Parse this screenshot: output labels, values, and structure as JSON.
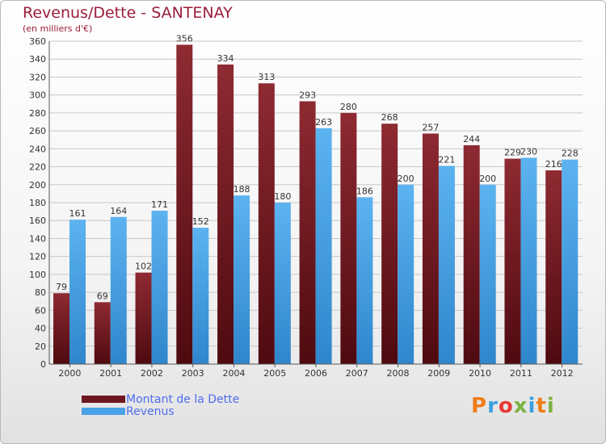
{
  "title": "Revenus/Dette - SANTENAY",
  "subtitle": "(en milliers d'€)",
  "logo": {
    "text": "Proxiti"
  },
  "colors": {
    "title": "#9b1d3a",
    "dette": "#6e1620",
    "revenus": "#4aa3e8",
    "legend_text": "#4f6df0"
  },
  "legend": [
    {
      "label": "Montant de la Dette",
      "color": "#6e1620"
    },
    {
      "label": "Revenus",
      "color": "#4aa3e8"
    }
  ],
  "chart_data": {
    "type": "bar",
    "title": "Revenus/Dette - SANTENAY",
    "ylabel": "(en milliers d'€)",
    "ylim": [
      0,
      360
    ],
    "yticks": [
      0,
      20,
      40,
      60,
      80,
      100,
      120,
      140,
      160,
      180,
      200,
      220,
      240,
      260,
      280,
      300,
      320,
      340,
      360
    ],
    "grid": true,
    "legend_position": "bottom-left",
    "categories": [
      "2000",
      "2001",
      "2002",
      "2003",
      "2004",
      "2005",
      "2006",
      "2007",
      "2008",
      "2009",
      "2010",
      "2011",
      "2012"
    ],
    "series": [
      {
        "name": "Montant de la Dette",
        "values": [
          79,
          69,
          102,
          356,
          334,
          313,
          293,
          280,
          268,
          257,
          244,
          229,
          216
        ]
      },
      {
        "name": "Revenus",
        "values": [
          161,
          164,
          171,
          152,
          188,
          180,
          263,
          186,
          200,
          221,
          200,
          230,
          228
        ]
      }
    ]
  }
}
